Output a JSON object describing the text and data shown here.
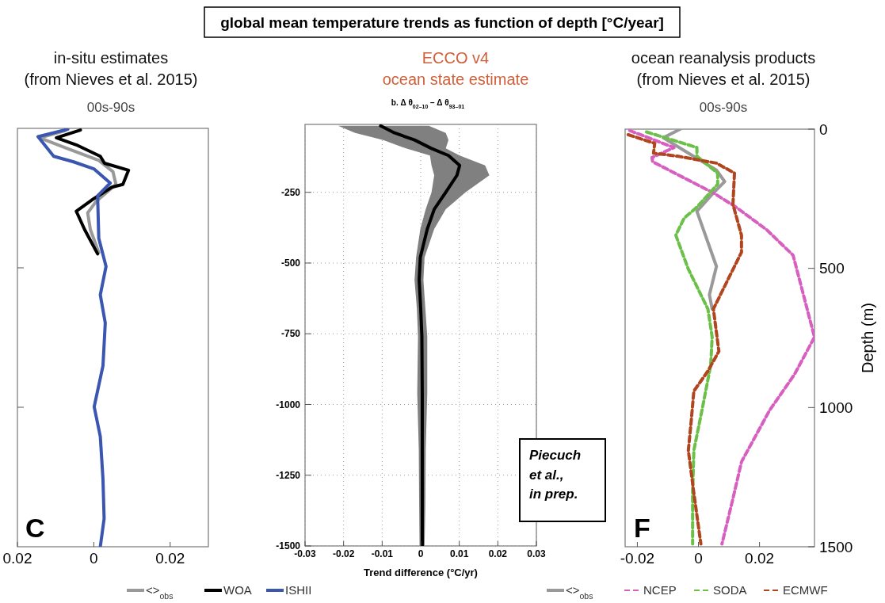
{
  "chart_data": [
    {
      "type": "line",
      "orientation": "horizontal",
      "title": "in-situ estimates\n(from Nieves et al. 2015)",
      "subtitle": "00s-90s",
      "xlim": [
        -0.02,
        0.03
      ],
      "xticks": [
        {
          "value": -0.02,
          "label": "0.02"
        },
        0,
        0.02
      ],
      "ylim": [
        1500,
        0
      ],
      "yticks": [
        500,
        1000
      ],
      "tick_labels": "x",
      "legend": "bottom",
      "annotations": [
        "C"
      ],
      "series": [
        {
          "name": "<>$_{obs}$",
          "color": "#999999",
          "line_style": "solid",
          "values": [
            -0.0075,
            -0.0142,
            -0.0075,
            0.0013,
            0.005,
            0.0058,
            0.0006,
            -0.0016,
            -0.0009,
            0.0013
          ],
          "x": [
            8,
            34,
            69,
            115,
            155,
            201,
            262,
            303,
            363,
            445
          ]
        },
        {
          "name": "WOA",
          "color": "#000000",
          "line_style": "solid",
          "values": [
            -0.0035,
            -0.0098,
            -0.0046,
            0.0017,
            0.0028,
            0.0091,
            0.0076,
            0.0047,
            0,
            -0.0046,
            -0.0024,
            0.001
          ],
          "x": [
            6,
            34,
            59,
            100,
            125,
            150,
            201,
            211,
            252,
            297,
            363,
            450
          ]
        },
        {
          "name": "ISHII",
          "color": "#3a56b0",
          "line_style": "solid",
          "values": [
            -0.0068,
            -0.0146,
            -0.0105,
            -0.0053,
            0,
            0.0043,
            0.001,
            0.0013,
            0.0032,
            0.0017,
            0.003,
            0.0024,
            0.0001,
            0.0017,
            0.0024,
            0.0027,
            0.0017
          ],
          "x": [
            3,
            30,
            100,
            120,
            145,
            196,
            242,
            394,
            495,
            597,
            698,
            851,
            998,
            1105,
            1257,
            1399,
            1500
          ]
        }
      ]
    },
    {
      "type": "line",
      "orientation": "horizontal",
      "title": "global mean temperature trends as function of depth [°C/year]",
      "subtitle": "ECCO v4\nocean state estimate",
      "xlabel": "Trend difference (°C/yr)",
      "xlim": [
        -0.03,
        0.03
      ],
      "xticks": [
        -0.03,
        -0.02,
        -0.01,
        0,
        0.01,
        0.02,
        0.03
      ],
      "ylim": [
        -1500,
        -10
      ],
      "yticks": [
        -250,
        -500,
        -750,
        -1000,
        -1250,
        -1500
      ],
      "grid": true,
      "annotations": [
        "b. Δ θ$_{02–10}$ − Δ θ$_{93–01}$",
        "Piecuch\net al.,\nin prep."
      ],
      "series": [
        {
          "color": "#000000",
          "line_style": "solid",
          "values": [
            -0.0104,
            -0.0068,
            -0.0016,
            0.0028,
            0.0072,
            0.0101,
            0.0094,
            0.0065,
            0.0035,
            0.0017,
            -0.0001,
            -0.0004,
            0,
            0.0003,
            0.0004,
            0.0004,
            0.0004,
            0.0004
          ],
          "x": [
            -15,
            -40,
            -65,
            -95,
            -120,
            -155,
            -190,
            -250,
            -310,
            -380,
            -480,
            -560,
            -660,
            -760,
            -960,
            -1160,
            -1360,
            -1500
          ],
          "lower": [
            -0.0214,
            -0.017,
            -0.0097,
            -0.0038,
            0.0024,
            0.0028,
            0.0035,
            0.0028,
            0.0013,
            -0.0001,
            -0.0012,
            -0.0016,
            -0.001,
            -0.0007,
            -0.0009,
            -0.0005,
            -0.0004,
            -0.0003
          ],
          "upper": [
            0.0021,
            0.0065,
            0.0072,
            0.0065,
            0.0101,
            0.0167,
            0.0178,
            0.0116,
            0.0065,
            0.0035,
            0.001,
            0.0007,
            0.0012,
            0.0017,
            0.0017,
            0.0013,
            0.0012,
            0.001
          ]
        }
      ]
    },
    {
      "type": "line",
      "orientation": "horizontal",
      "title": "ocean reanalysis products\n(from Nieves et al. 2015)",
      "subtitle": "00s-90s",
      "ylabel": "Depth (m)",
      "xlim": [
        -0.024,
        0.038
      ],
      "xticks": [
        -0.02,
        0,
        0.02
      ],
      "ylim": [
        1500,
        0
      ],
      "yticks": [
        0,
        500,
        1000,
        1500
      ],
      "legend": "bottom",
      "annotations": [
        "F"
      ],
      "series": [
        {
          "name": "<>$_{obs}$",
          "color": "#999999",
          "line_style": "solid",
          "values": [
            -0.006,
            -0.0115,
            -0.0033,
            0.0059,
            0.0086,
            0.0045,
            -0.0005,
            0.0059,
            0.0036,
            0.0045
          ],
          "x": [
            0,
            31,
            86,
            147,
            188,
            234,
            295,
            493,
            595,
            646
          ]
        },
        {
          "name": "NCEP",
          "color": "#d75fc0",
          "line_style": "dashed",
          "values": [
            -0.0225,
            -0.008,
            -0.0152,
            -0.015,
            0.0049,
            0.0123,
            0.0223,
            0.031,
            0.038,
            0.0315,
            0.0232,
            0.0141,
            0.0113,
            0.0077
          ],
          "x": [
            5,
            66,
            102,
            117,
            229,
            280,
            361,
            453,
            747,
            880,
            1012,
            1195,
            1327,
            1490
          ]
        },
        {
          "name": "SODA",
          "color": "#6cc04a",
          "line_style": "dashed",
          "values": [
            -0.017,
            -0.0005,
            -0.0005,
            0.0063,
            0.0063,
            -0.0005,
            -0.0047,
            -0.0074,
            -0.0033,
            0.0031,
            0.0045,
            0.004,
            0.0013,
            -0.0015,
            -0.0019,
            -0.0019
          ],
          "x": [
            10,
            66,
            97,
            158,
            198,
            280,
            320,
            381,
            503,
            646,
            747,
            849,
            1002,
            1154,
            1307,
            1490
          ]
        },
        {
          "name": "ECMWF",
          "color": "#b0451e",
          "line_style": "dashed",
          "values": [
            -0.023,
            -0.0143,
            -0.0147,
            -0.0069,
            0.0059,
            0.0118,
            0.0113,
            0.0141,
            0.0141,
            0.0049,
            0.0067,
            0.0031,
            -0.0015,
            -0.0024,
            -0.0033,
            -0.0015,
            0.0008
          ],
          "x": [
            20,
            51,
            86,
            97,
            122,
            158,
            270,
            381,
            442,
            646,
            798,
            869,
            941,
            1053,
            1154,
            1307,
            1490
          ]
        }
      ]
    }
  ]
}
